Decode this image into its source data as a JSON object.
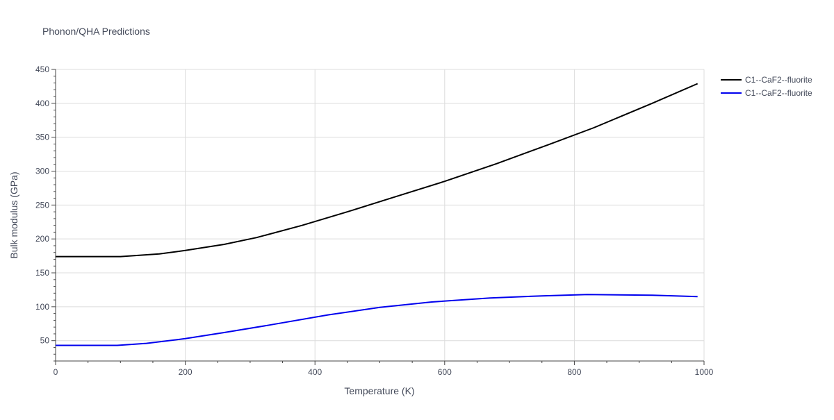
{
  "chart_data": {
    "type": "line",
    "title": "Phonon/QHA Predictions",
    "xlabel": "Temperature (K)",
    "ylabel": "Bulk modulus (GPa)",
    "xlim": [
      0,
      1000
    ],
    "ylim": [
      20,
      450
    ],
    "xticks": [
      0,
      200,
      400,
      600,
      800,
      1000
    ],
    "xtick_labels": [
      "0",
      "200",
      "400",
      "600",
      "800",
      "1000"
    ],
    "yticks": [
      50,
      100,
      150,
      200,
      250,
      300,
      350,
      400,
      450
    ],
    "ytick_labels": [
      "50",
      "100",
      "150",
      "200",
      "250",
      "300",
      "350",
      "400",
      "450"
    ],
    "grid": true,
    "legend_position": "top-right",
    "series": [
      {
        "name": "C1--CaF2--fluorite",
        "color": "#000000",
        "x": [
          0,
          100,
          160,
          200,
          260,
          310,
          380,
          450,
          520,
          600,
          680,
          760,
          830,
          920,
          990
        ],
        "y": [
          174,
          174,
          178,
          183,
          192,
          202,
          220,
          240,
          261,
          285,
          311,
          339,
          364,
          400,
          429
        ]
      },
      {
        "name": "C1--CaF2--fluorite",
        "color": "#0000ee",
        "x": [
          0,
          95,
          140,
          200,
          260,
          330,
          420,
          500,
          580,
          670,
          750,
          820,
          920,
          990
        ],
        "y": [
          43,
          43,
          46,
          53,
          62,
          73,
          88,
          99,
          107,
          113,
          116,
          118,
          117,
          115
        ]
      }
    ]
  }
}
